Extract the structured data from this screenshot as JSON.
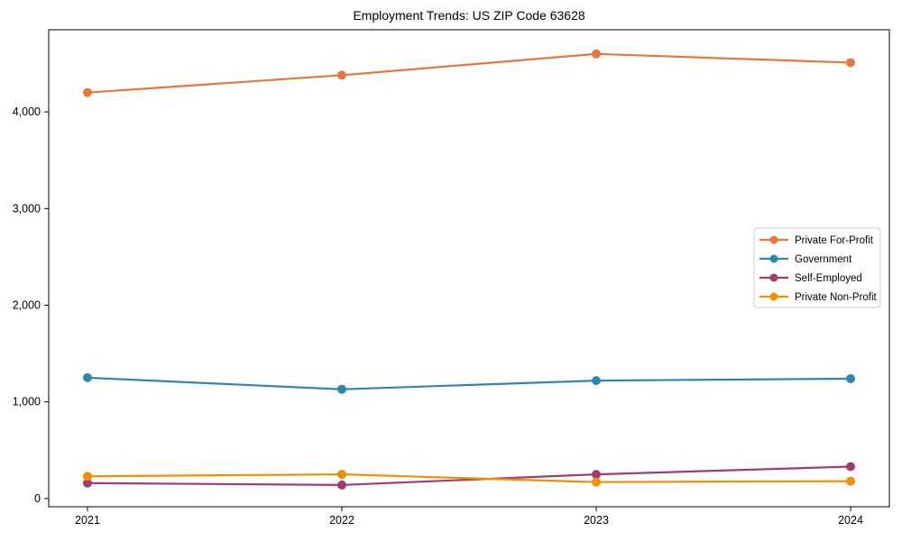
{
  "chart_data": {
    "type": "line",
    "title": "Employment Trends: US ZIP Code 63628",
    "xlabel": "",
    "ylabel": "",
    "categories": [
      "2021",
      "2022",
      "2023",
      "2024"
    ],
    "series": [
      {
        "name": "Private For-Profit",
        "color": "#E8773D",
        "values": [
          4200,
          4380,
          4600,
          4510
        ]
      },
      {
        "name": "Government",
        "color": "#2E86AB",
        "values": [
          1250,
          1130,
          1220,
          1240
        ]
      },
      {
        "name": "Self-Employed",
        "color": "#A23B72",
        "values": [
          160,
          140,
          250,
          330
        ]
      },
      {
        "name": "Private Non-Profit",
        "color": "#F18F01",
        "values": [
          230,
          250,
          170,
          180
        ]
      }
    ],
    "ylim": [
      -85,
      4850
    ],
    "yticks": [
      0,
      1000,
      2000,
      3000,
      4000
    ],
    "ytick_labels": [
      "0",
      "1,000",
      "2,000",
      "3,000",
      "4,000"
    ],
    "grid": false,
    "marker": "circle",
    "legend_position": "center-right",
    "axis_color": "#000000",
    "legend_border_color": "#cccccc",
    "legend_background": "#ffffff"
  }
}
